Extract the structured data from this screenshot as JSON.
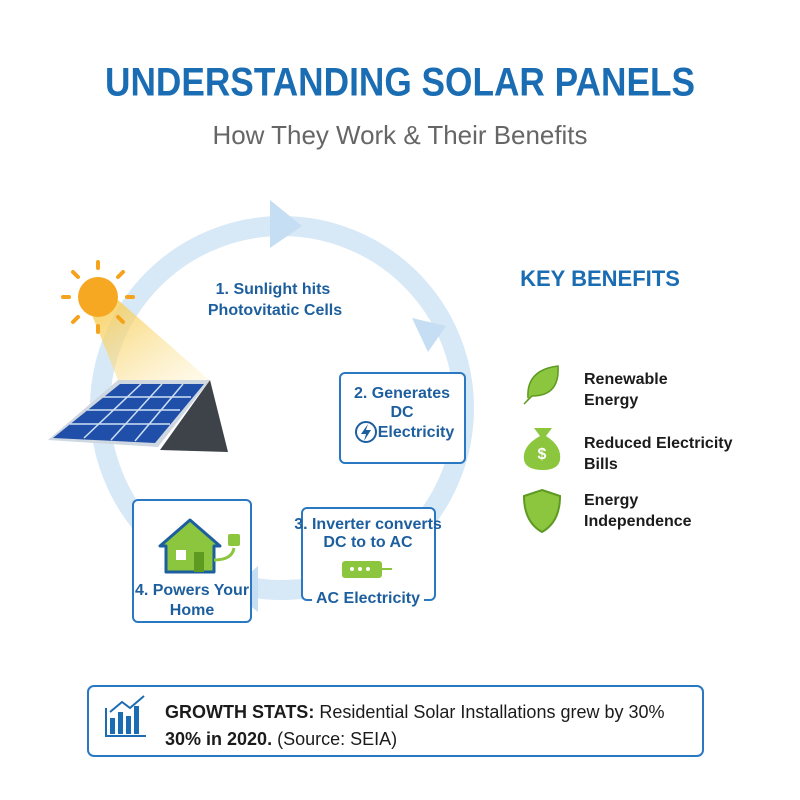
{
  "header": {
    "title": "UNDERSTANDING SOLAR PANELS",
    "subtitle": "How They Work & Their Benefits"
  },
  "steps": [
    {
      "lines": [
        "1. Sunlight hits",
        "Photovitatic Cells"
      ]
    },
    {
      "lines": [
        "2. Generates",
        "DC",
        "Electricity"
      ]
    },
    {
      "lines": [
        "3. Inverter converts",
        "DC to to AC"
      ],
      "output": "AC Electricity"
    },
    {
      "lines": [
        "4. Powers Your",
        "Home"
      ]
    }
  ],
  "benefits": {
    "title": "KEY BENEFITS",
    "items": [
      {
        "lines": [
          "Renewable",
          "Energy"
        ]
      },
      {
        "lines": [
          "Reduced Electricity",
          "Bills"
        ]
      },
      {
        "lines": [
          "Energy",
          "Independence"
        ]
      }
    ]
  },
  "stats": {
    "label": "GROWTH STATS:",
    "lines": [
      "Residential Solar Installations grew by 30%",
      "30% in 2020."
    ],
    "source": "(Source: SEIA)"
  }
}
